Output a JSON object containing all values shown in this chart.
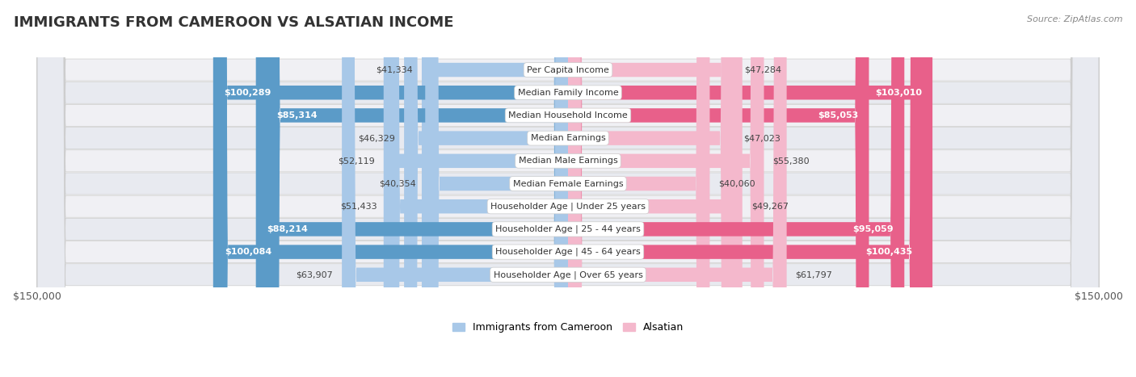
{
  "title": "IMMIGRANTS FROM CAMEROON VS ALSATIAN INCOME",
  "source": "Source: ZipAtlas.com",
  "categories": [
    "Per Capita Income",
    "Median Family Income",
    "Median Household Income",
    "Median Earnings",
    "Median Male Earnings",
    "Median Female Earnings",
    "Householder Age | Under 25 years",
    "Householder Age | 25 - 44 years",
    "Householder Age | 45 - 64 years",
    "Householder Age | Over 65 years"
  ],
  "cameroon_values": [
    41334,
    100289,
    85314,
    46329,
    52119,
    40354,
    51433,
    88214,
    100084,
    63907
  ],
  "alsatian_values": [
    47284,
    103010,
    85053,
    47023,
    55380,
    40060,
    49267,
    95059,
    100435,
    61797
  ],
  "cameroon_labels": [
    "$41,334",
    "$100,289",
    "$85,314",
    "$46,329",
    "$52,119",
    "$40,354",
    "$51,433",
    "$88,214",
    "$100,084",
    "$63,907"
  ],
  "alsatian_labels": [
    "$47,284",
    "$103,010",
    "$85,053",
    "$47,023",
    "$55,380",
    "$40,060",
    "$49,267",
    "$95,059",
    "$100,435",
    "$61,797"
  ],
  "cameroon_color_light": "#a8c8e8",
  "cameroon_color_dark": "#5b9bc8",
  "alsatian_color_light": "#f4b8cc",
  "alsatian_color_dark": "#e8608a",
  "bar_height": 0.62,
  "max_value": 150000,
  "legend_cameroon": "Immigrants from Cameroon",
  "legend_alsatian": "Alsatian",
  "inside_threshold": 65000,
  "row_colors": [
    "#f0f0f4",
    "#e8eaf0"
  ],
  "title_fontsize": 13,
  "label_fontsize": 8,
  "cat_fontsize": 8
}
